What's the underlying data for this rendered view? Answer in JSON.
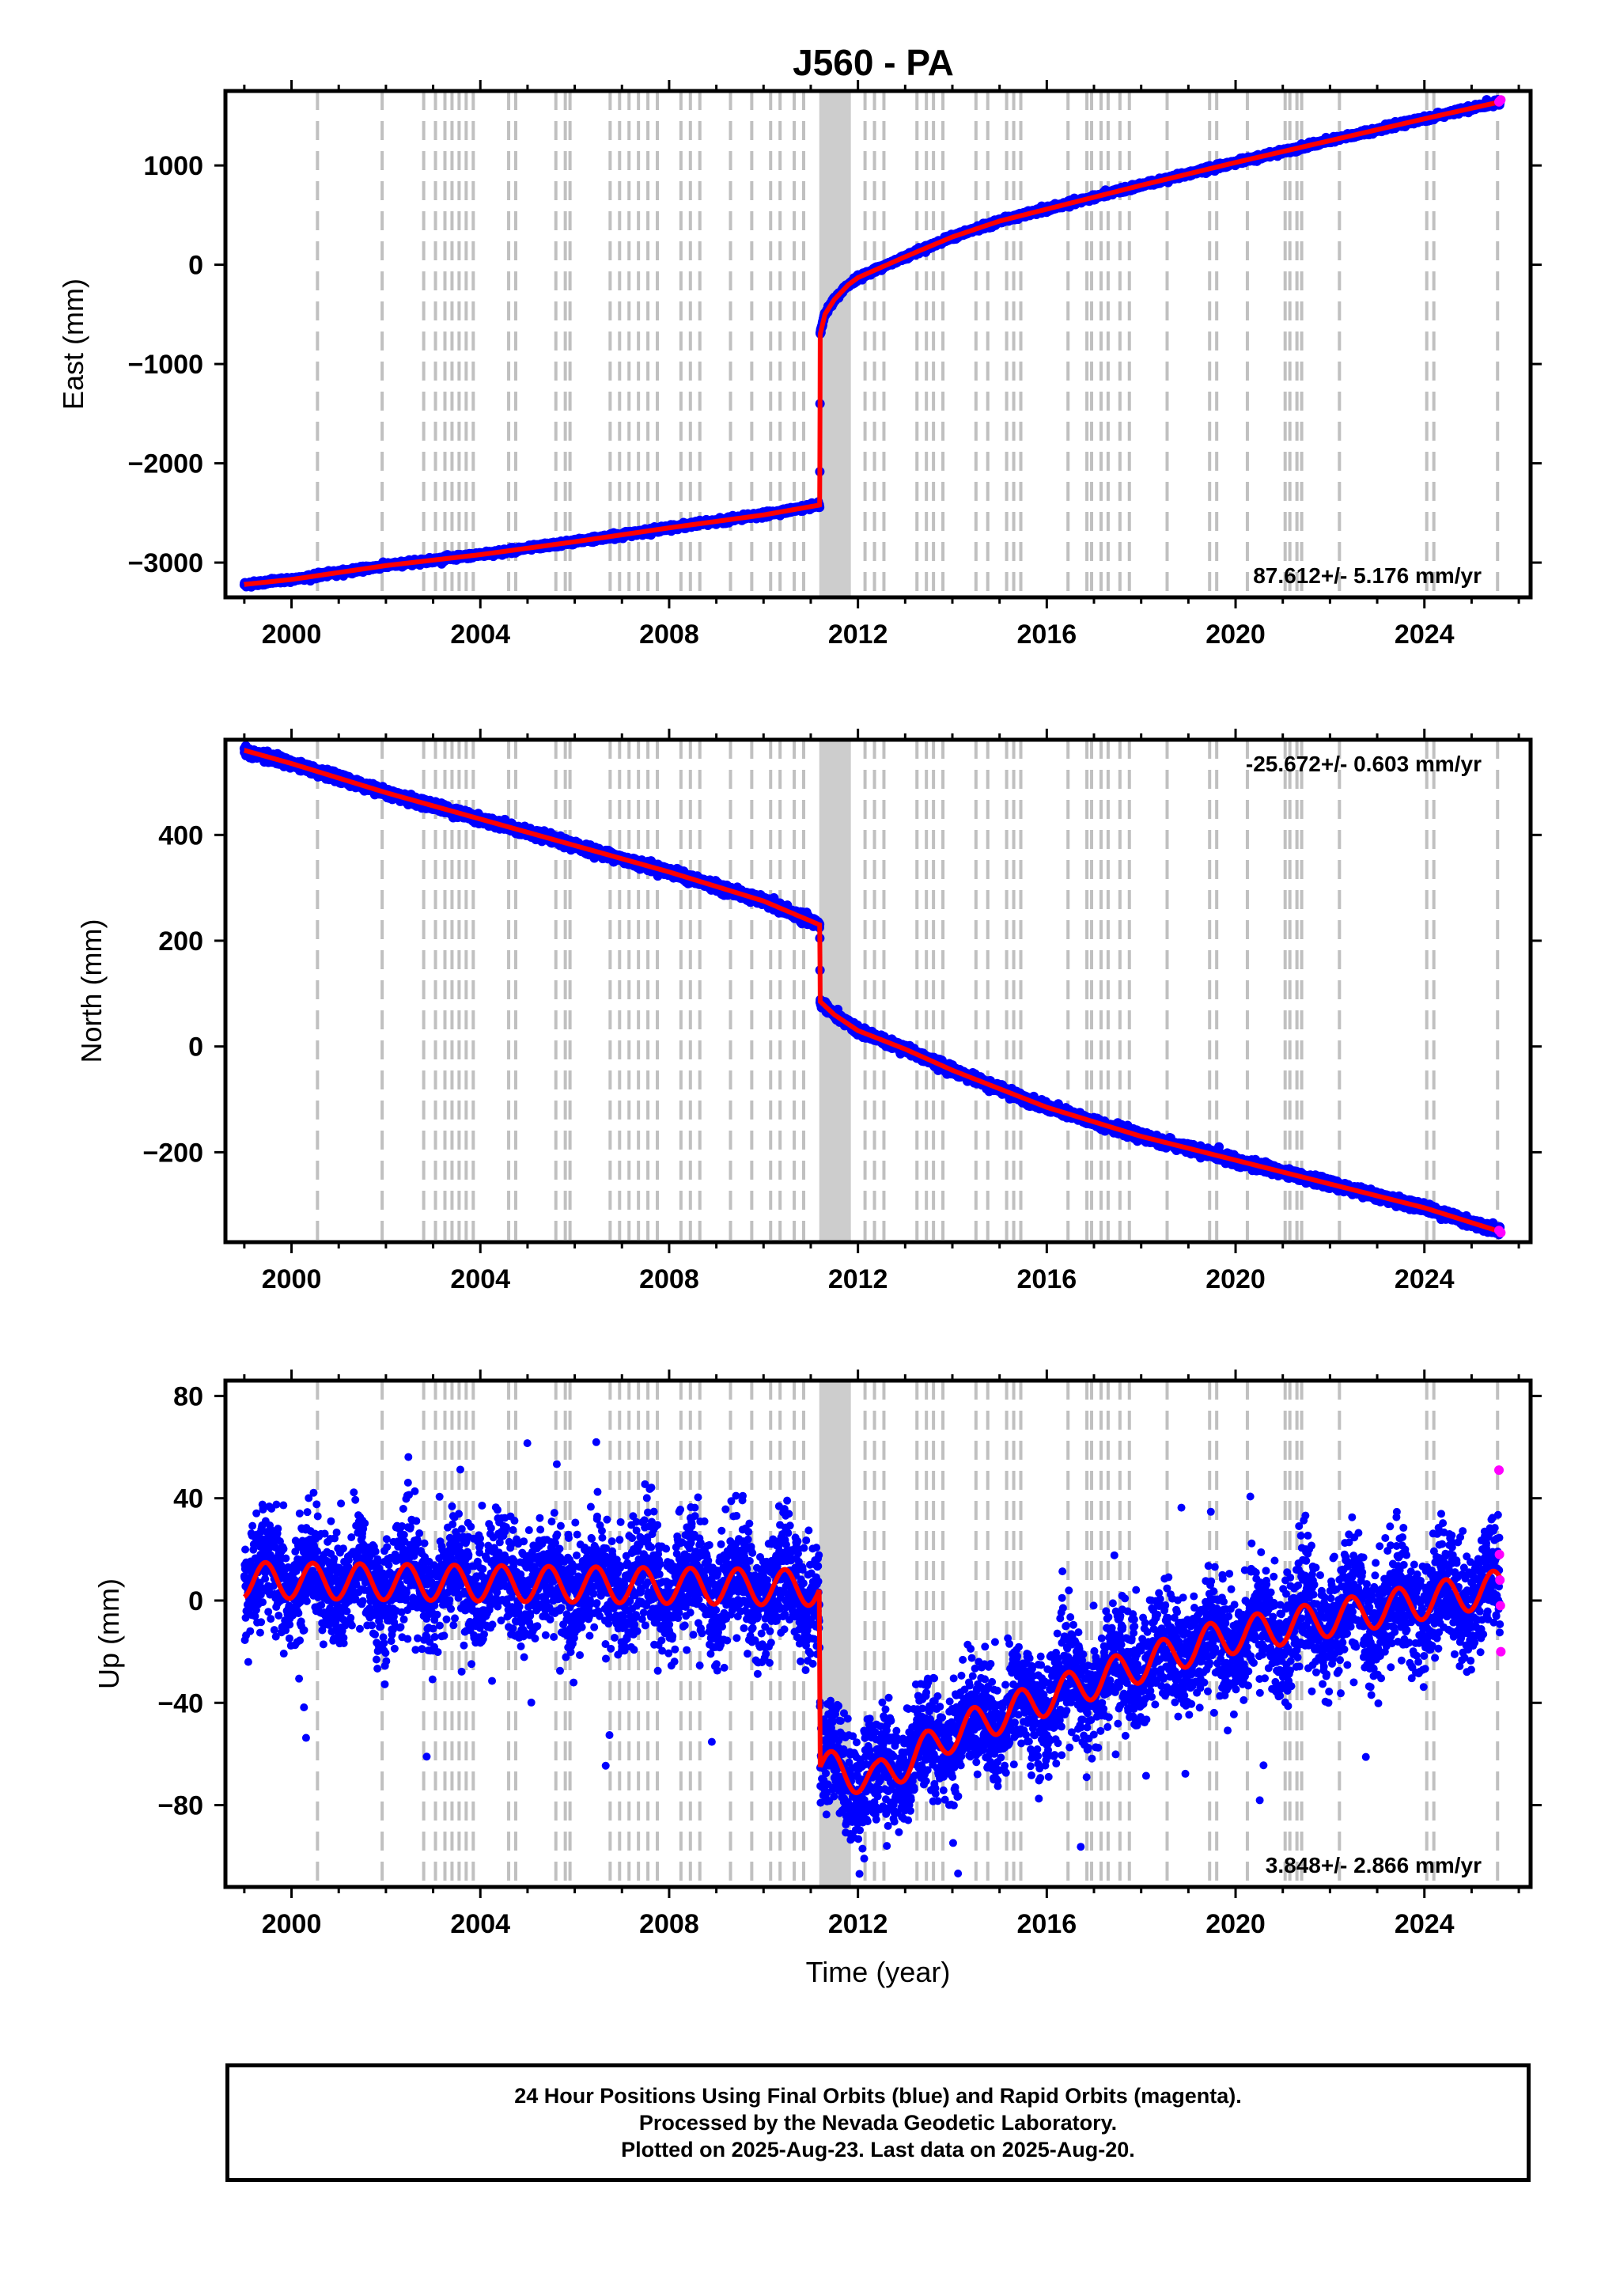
{
  "title": "J560 - PA",
  "caption": {
    "line1": "24 Hour Positions Using Final Orbits (blue) and Rapid Orbits (magenta).",
    "line2": "Processed by the Nevada Geodetic Laboratory.",
    "line3": "Plotted on 2025-Aug-23. Last data on 2025-Aug-20."
  },
  "colors": {
    "final_orbits": "#0000ff",
    "rapid_orbits": "#ff00ff",
    "model": "#ff0000",
    "event_lines": "#c0c0c0"
  },
  "chart_data": [
    {
      "type": "scatter",
      "panel": "east",
      "title": "J560 - PA",
      "xlabel": "",
      "ylabel": "East (mm)",
      "xlim": [
        1998.6,
        2026.25
      ],
      "ylim": [
        -3350,
        1750
      ],
      "xticks": [
        2000,
        2004,
        2008,
        2012,
        2016,
        2020,
        2024
      ],
      "yticks": [
        -3000,
        -2000,
        -1000,
        0,
        1000
      ],
      "ytick_labels": [
        "−3000",
        "−2000",
        "−1000",
        "0",
        "1000"
      ],
      "rate_text": "87.612+/- 5.176 mm/yr",
      "rate_position": "bottom-right",
      "series": [
        {
          "name": "Final orbits",
          "color": "#0000ff",
          "x": [
            1999.0,
            2000.0,
            2002.0,
            2004.0,
            2006.0,
            2008.0,
            2010.0,
            2011.19,
            2011.2,
            2011.3,
            2011.5,
            2011.8,
            2012.0,
            2013.0,
            2014.0,
            2015.0,
            2016.0,
            2018.0,
            2020.0,
            2022.0,
            2024.0,
            2025.6
          ],
          "y": [
            -3220,
            -3170,
            -3030,
            -2920,
            -2790,
            -2650,
            -2520,
            -2420,
            -700,
            -500,
            -350,
            -200,
            -130,
            80,
            280,
            440,
            560,
            800,
            1030,
            1250,
            1470,
            1640
          ]
        },
        {
          "name": "Rapid orbits",
          "color": "#ff00ff",
          "x": [
            2025.58,
            2025.62
          ],
          "y": [
            1640,
            1660
          ]
        }
      ],
      "grid": false
    },
    {
      "type": "scatter",
      "panel": "north",
      "xlabel": "",
      "ylabel": "North (mm)",
      "xlim": [
        1998.6,
        2026.25
      ],
      "ylim": [
        -370,
        580
      ],
      "xticks": [
        2000,
        2004,
        2008,
        2012,
        2016,
        2020,
        2024
      ],
      "yticks": [
        -200,
        0,
        200,
        400
      ],
      "ytick_labels": [
        "−200",
        "0",
        "200",
        "400"
      ],
      "rate_text": "-25.672+/- 0.603 mm/yr",
      "rate_position": "top-right",
      "series": [
        {
          "name": "Final orbits",
          "color": "#0000ff",
          "x": [
            1999.0,
            2000.0,
            2002.0,
            2004.0,
            2006.0,
            2008.0,
            2010.0,
            2011.19,
            2011.2,
            2011.5,
            2012.0,
            2013.0,
            2014.0,
            2015.0,
            2016.0,
            2018.0,
            2020.0,
            2022.0,
            2024.0,
            2025.6
          ],
          "y": [
            560,
            535,
            480,
            430,
            380,
            330,
            275,
            230,
            85,
            60,
            30,
            -5,
            -45,
            -80,
            -115,
            -170,
            -215,
            -260,
            -305,
            -350
          ]
        },
        {
          "name": "Rapid orbits",
          "color": "#ff00ff",
          "x": [
            2025.58,
            2025.62
          ],
          "y": [
            -348,
            -352
          ]
        }
      ],
      "grid": false
    },
    {
      "type": "scatter",
      "panel": "up",
      "xlabel": "Time (year)",
      "ylabel": "Up (mm)",
      "xlim": [
        1998.6,
        2026.25
      ],
      "ylim": [
        -112,
        86
      ],
      "xticks": [
        2000,
        2004,
        2008,
        2012,
        2016,
        2020,
        2024
      ],
      "yticks": [
        -80,
        -40,
        0,
        40,
        80
      ],
      "ytick_labels": [
        "−80",
        "−40",
        "0",
        "40",
        "80"
      ],
      "rate_text": "3.848+/- 2.866 mm/yr",
      "rate_position": "bottom-right",
      "series": [
        {
          "name": "Final orbits (trend)",
          "color": "#0000ff",
          "x": [
            1999.0,
            2011.18,
            2011.2,
            2012.4,
            2014.0,
            2016.0,
            2018.0,
            2019.6,
            2025.6
          ],
          "y": [
            8,
            5,
            -65,
            -70,
            -52,
            -38,
            -25,
            -15,
            5
          ]
        },
        {
          "name": "Rapid orbits",
          "color": "#ff00ff",
          "x": [
            2025.58,
            2025.59,
            2025.6,
            2025.61,
            2025.62
          ],
          "y": [
            51,
            18,
            8,
            -2,
            -20
          ]
        }
      ],
      "grid": false
    }
  ],
  "event_years": [
    2000.55,
    2001.92,
    2002.8,
    2003.05,
    2003.25,
    2003.4,
    2003.55,
    2003.7,
    2003.85,
    2004.6,
    2004.75,
    2005.6,
    2005.8,
    2005.9,
    2006.75,
    2006.95,
    2007.15,
    2007.35,
    2007.55,
    2007.75,
    2008.25,
    2008.45,
    2008.65,
    2009.3,
    2009.75,
    2010.15,
    2010.35,
    2010.65,
    2010.85,
    2012.15,
    2012.35,
    2012.55,
    2013.25,
    2013.45,
    2013.6,
    2013.8,
    2014.5,
    2014.75,
    2015.15,
    2015.3,
    2015.45,
    2016.45,
    2016.85,
    2016.95,
    2017.15,
    2017.3,
    2017.55,
    2017.75,
    2018.55,
    2019.45,
    2019.6,
    2020.25,
    2021.05,
    2021.15,
    2021.3,
    2021.4,
    2022.2,
    2024.05,
    2024.2,
    2025.55
  ],
  "event_band": [
    2011.18,
    2011.85
  ]
}
